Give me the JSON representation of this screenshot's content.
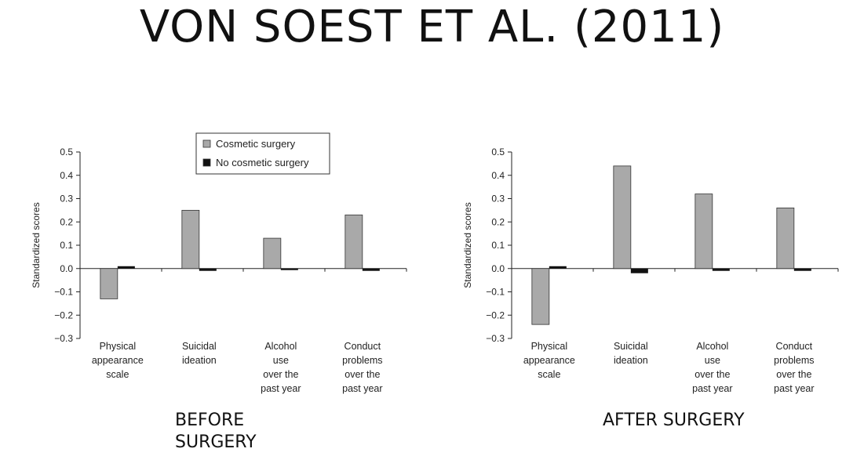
{
  "slide": {
    "title": "VON SOEST ET AL. (2011)"
  },
  "colors": {
    "cosmetic": "#a9a9a9",
    "no_cosmetic": "#111111",
    "axis": "#222222"
  },
  "chart_data": [
    {
      "type": "bar",
      "caption": "BEFORE\nSURGERY",
      "ylabel": "Standardized scores",
      "ylim": [
        -0.3,
        0.5
      ],
      "yticks": [
        "-0.3",
        "-0.2",
        "-0.1",
        "0.0",
        "0.1",
        "0.2",
        "0.3",
        "0.4",
        "0.5"
      ],
      "categories": [
        [
          "Physical",
          "appearance",
          "scale"
        ],
        [
          "Suicidal",
          "ideation"
        ],
        [
          "Alcohol",
          "use",
          "over the",
          "past year"
        ],
        [
          "Conduct",
          "problems",
          "over the",
          "past year"
        ]
      ],
      "legend": {
        "position": "top-center"
      },
      "series": [
        {
          "name": "Cosmetic surgery",
          "values": [
            -0.13,
            0.25,
            0.13,
            0.23
          ]
        },
        {
          "name": "No cosmetic surgery",
          "values": [
            0.01,
            -0.01,
            -0.005,
            -0.01
          ]
        }
      ]
    },
    {
      "type": "bar",
      "caption": "AFTER SURGERY",
      "ylabel": "Standardized scores",
      "ylim": [
        -0.3,
        0.5
      ],
      "yticks": [
        "-0.3",
        "-0.2",
        "-0.1",
        "0.0",
        "0.1",
        "0.2",
        "0.3",
        "0.4",
        "0.5"
      ],
      "categories": [
        [
          "Physical",
          "appearance",
          "scale"
        ],
        [
          "Suicidal",
          "ideation"
        ],
        [
          "Alcohol",
          "use",
          "over the",
          "past year"
        ],
        [
          "Conduct",
          "problems",
          "over the",
          "past year"
        ]
      ],
      "series": [
        {
          "name": "Cosmetic surgery",
          "values": [
            -0.24,
            0.44,
            0.32,
            0.26
          ]
        },
        {
          "name": "No cosmetic surgery",
          "values": [
            0.01,
            -0.02,
            -0.01,
            -0.01
          ]
        }
      ]
    }
  ]
}
